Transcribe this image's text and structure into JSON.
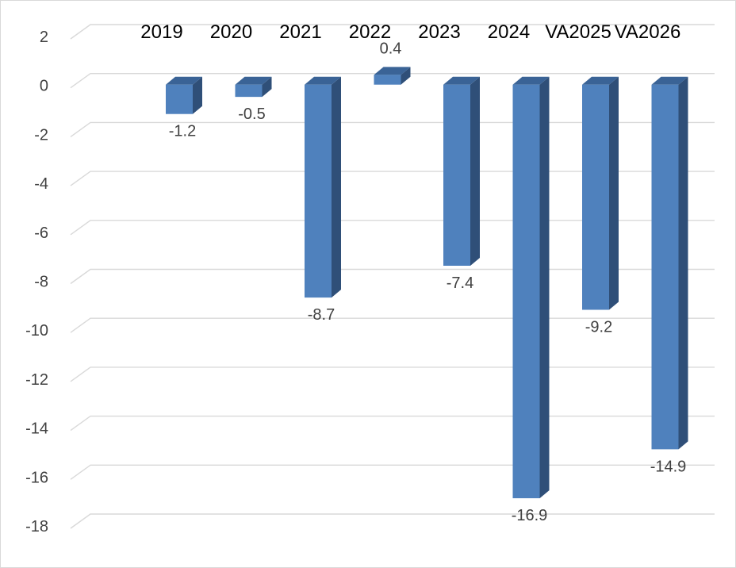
{
  "chart_data": {
    "type": "bar",
    "categories": [
      "2019",
      "2020",
      "2021",
      "2022",
      "2023",
      "2024",
      "VA2025",
      "VA2026"
    ],
    "values": [
      -1.2,
      -0.5,
      -8.7,
      0.4,
      -7.4,
      -16.9,
      -9.2,
      -14.9
    ],
    "data_labels": [
      "-1.2",
      "-0.5",
      "-8.7",
      "0.4",
      "-7.4",
      "-16.9",
      "-9.2",
      "-14.9"
    ],
    "yticks": [
      2,
      0,
      -2,
      -4,
      -6,
      -8,
      -10,
      -12,
      -14,
      -16,
      -18
    ],
    "ytick_labels": [
      "2",
      "0",
      "-2",
      "-4",
      "-6",
      "-8",
      "-10",
      "-12",
      "-14",
      "-16",
      "-18"
    ],
    "ylim": [
      -18,
      2
    ],
    "title": "",
    "xlabel": "",
    "ylabel": "",
    "grid": true,
    "legend": "none",
    "bar_style": "3d",
    "colors": {
      "bar_front": "#4f81bd",
      "bar_side": "#2f4f78",
      "bar_top": "#3a6396",
      "grid": "#d9d9d9"
    }
  }
}
